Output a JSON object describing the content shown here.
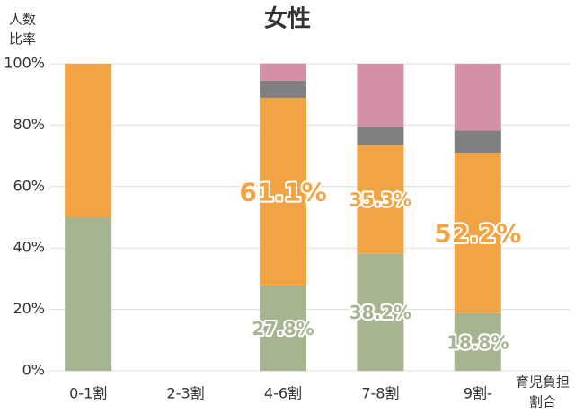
{
  "chart_data": {
    "type": "stacked_bar",
    "title": "女性",
    "y_label": [
      "人数",
      "比率"
    ],
    "x_label": [
      "育児負担",
      "割合"
    ],
    "categories": [
      "0-1割",
      "2-3割",
      "4-6割",
      "7-8割",
      "9割-"
    ],
    "series": [
      {
        "color": "#a5b591",
        "values": [
          50,
          0,
          27.8,
          38.2,
          18.8
        ],
        "value_labels": [
          null,
          null,
          "27.8%",
          "38.2%",
          "18.8%"
        ]
      },
      {
        "color": "#f2a444",
        "values": [
          50,
          0,
          61.1,
          35.3,
          52.2
        ],
        "value_labels": [
          null,
          null,
          "61.1%",
          "35.3%",
          "52.2%"
        ]
      },
      {
        "color": "#808080",
        "values": [
          0,
          0,
          5.6,
          5.9,
          7.2
        ]
      },
      {
        "color": "#d291a5",
        "values": [
          0,
          0,
          5.6,
          20.6,
          21.8
        ]
      }
    ],
    "ylim": [
      0,
      100
    ],
    "yticks": [
      {
        "value": 0,
        "label": "0%"
      },
      {
        "value": 20,
        "label": "20%"
      },
      {
        "value": 40,
        "label": "40%"
      },
      {
        "value": 60,
        "label": "60%"
      },
      {
        "value": 80,
        "label": "80%"
      },
      {
        "value": 100,
        "label": "100%"
      }
    ],
    "grid": true
  }
}
